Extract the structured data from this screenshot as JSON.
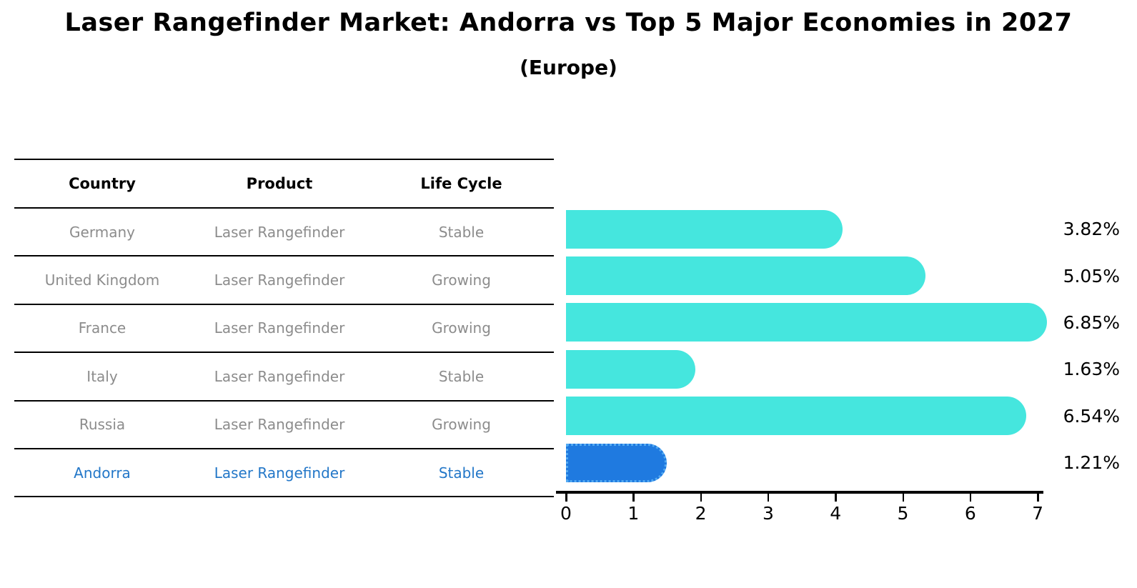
{
  "header": {
    "title": "Laser Rangefinder Market: Andorra vs Top 5 Major Economies in 2027",
    "subtitle": "(Europe)"
  },
  "table": {
    "columns": [
      "Country",
      "Product",
      "Life Cycle"
    ],
    "rows": [
      {
        "country": "Germany",
        "product": "Laser Rangefinder",
        "life_cycle": "Stable"
      },
      {
        "country": "United Kingdom",
        "product": "Laser Rangefinder",
        "life_cycle": "Growing"
      },
      {
        "country": "France",
        "product": "Laser Rangefinder",
        "life_cycle": "Growing"
      },
      {
        "country": "Italy",
        "product": "Laser Rangefinder",
        "life_cycle": "Stable"
      },
      {
        "country": "Russia",
        "product": "Laser Rangefinder",
        "life_cycle": "Growing"
      },
      {
        "country": "Andorra",
        "product": "Laser Rangefinder",
        "life_cycle": "Stable"
      }
    ],
    "highlight_row": "Andorra"
  },
  "chart_data": {
    "type": "bar",
    "orientation": "horizontal",
    "title": "Laser Rangefinder Market: Andorra vs Top 5 Major Economies in 2027 (Europe)",
    "categories": [
      "Germany",
      "United Kingdom",
      "France",
      "Italy",
      "Russia",
      "Andorra"
    ],
    "values": [
      3.82,
      5.05,
      6.85,
      1.63,
      6.54,
      1.21
    ],
    "value_labels": [
      "3.82%",
      "5.05%",
      "6.85%",
      "1.63%",
      "6.54%",
      "1.21%"
    ],
    "x_ticks": [
      "0",
      "1",
      "2",
      "3",
      "4",
      "5",
      "6",
      "7"
    ],
    "xlim": [
      0,
      7.2
    ],
    "grid": false,
    "legend": false,
    "highlight_index": 5,
    "bar_color": "#45E6DE",
    "highlight_bar_color": "#1F7AE0",
    "table_text_color": "#8c8c8c",
    "highlight_text_color": "#2377C8"
  }
}
